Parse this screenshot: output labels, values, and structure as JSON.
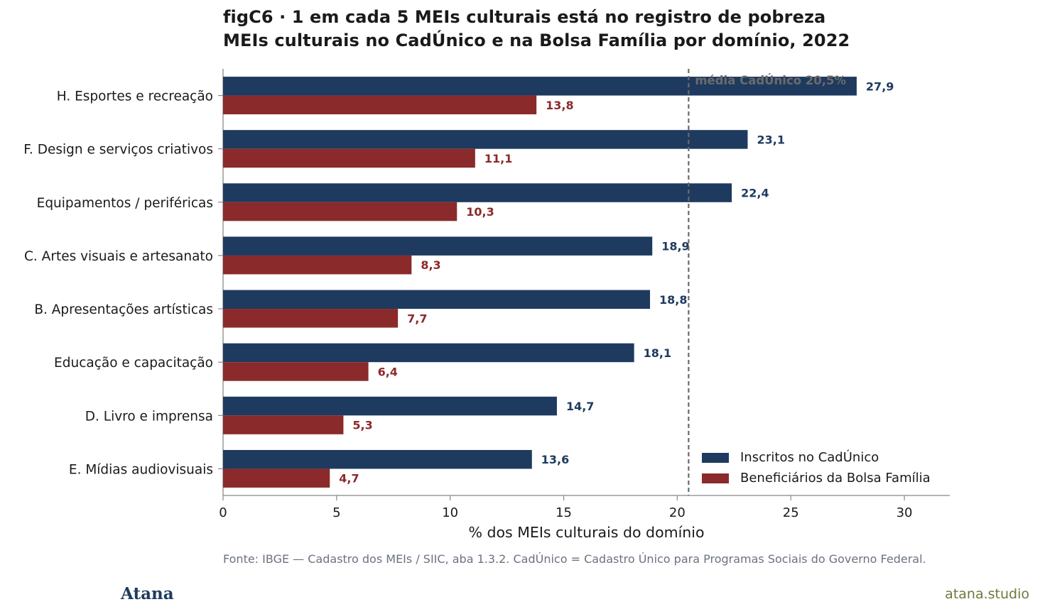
{
  "title_line1": "figC6 · 1 em cada 5 MEIs culturais está no registro de pobreza",
  "title_line2": "MEIs culturais no CadÚnico e na Bolsa Família por domínio, 2022",
  "source": "Fonte: IBGE — Cadastro dos MEIs / SIIC, aba 1.3.2. CadÚnico = Cadastro Único para Programas Sociais do Governo Federal.",
  "brand": "Atana",
  "url": "atana.studio",
  "colors": {
    "cadunico": "#1e3a5f",
    "bolsa": "#8b2a2a",
    "refline": "#6b6b6b",
    "axis": "#888888"
  },
  "chart_data": {
    "type": "bar",
    "orientation": "horizontal",
    "categories": [
      "H. Esportes e recreação",
      "F. Design e serviços criativos",
      "Equipamentos / periféricas",
      "C. Artes visuais e artesanato",
      "B. Apresentações artísticas",
      "Educação e capacitação",
      "D. Livro e imprensa",
      "E. Mídias audiovisuais"
    ],
    "series": [
      {
        "name": "Inscritos no CadÚnico",
        "values": [
          27.9,
          23.1,
          22.4,
          18.9,
          18.8,
          18.1,
          14.7,
          13.6
        ],
        "labels": [
          "27,9",
          "23,1",
          "22,4",
          "18,9",
          "18,8",
          "18,1",
          "14,7",
          "13,6"
        ]
      },
      {
        "name": "Beneficiários da Bolsa Família",
        "values": [
          13.8,
          11.1,
          10.3,
          8.3,
          7.7,
          6.4,
          5.3,
          4.7
        ],
        "labels": [
          "13,8",
          "11,1",
          "10,3",
          "8,3",
          "7,7",
          "6,4",
          "5,3",
          "4,7"
        ]
      }
    ],
    "reference_line": {
      "value": 20.5,
      "label": "média CadÚnico 20,5%"
    },
    "xlabel": "% dos MEIs culturais do domínio",
    "xlim": [
      0,
      32
    ],
    "xticks": [
      0,
      5,
      10,
      15,
      20,
      25,
      30
    ],
    "xtick_labels": [
      "0",
      "5",
      "10",
      "15",
      "20",
      "25",
      "30"
    ],
    "legend_position": "bottom-right",
    "grid": false
  }
}
